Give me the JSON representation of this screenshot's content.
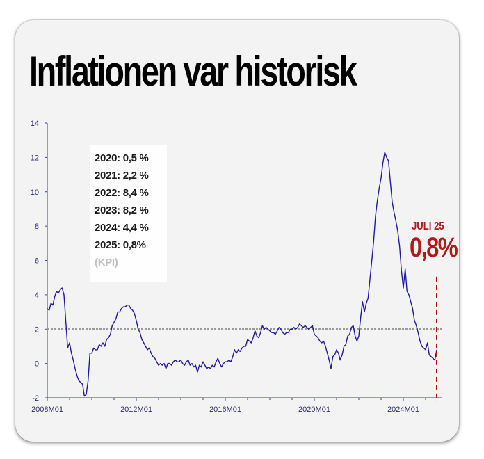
{
  "title": "Inflationen var historisk",
  "infobox": {
    "lines": [
      "2020: 0,5 %",
      "2021: 2,2 %",
      "2022: 8,4 %",
      "2023: 8,2 %",
      "2024: 4,4 %",
      "2025: 0,8%"
    ],
    "source": "(KPI)"
  },
  "callout": {
    "month": "JULI 25",
    "value": "0,8%"
  },
  "colors": {
    "line": "#1f1aa0",
    "callout": "#b01a1a",
    "reference": "#9a9a9a"
  },
  "chart_data": {
    "type": "line",
    "title": "Inflationen var historisk",
    "xlabel": "",
    "ylabel": "",
    "ylim": [
      -2,
      14
    ],
    "y_ticks": [
      -2,
      0,
      2,
      4,
      6,
      8,
      10,
      12,
      14
    ],
    "x_tick_labels": [
      "2008M01",
      "2012M01",
      "2016M01",
      "2020M01",
      "2024M01"
    ],
    "x_start": "2008M01",
    "reference_line": 2,
    "grid": false,
    "series": [
      {
        "name": "",
        "frequency": "monthly",
        "values": [
          3.2,
          3.1,
          3.5,
          3.4,
          3.9,
          4.2,
          4.1,
          4.3,
          4.4,
          4.0,
          2.4,
          0.9,
          1.2,
          0.6,
          0.2,
          -0.3,
          -0.7,
          -1.0,
          -1.1,
          -1.2,
          -1.9,
          -1.8,
          -1.0,
          0.6,
          0.6,
          0.9,
          0.8,
          0.8,
          1.1,
          1.0,
          1.2,
          1.0,
          1.4,
          1.5,
          1.7,
          2.2,
          2.4,
          2.6,
          3.0,
          3.0,
          3.2,
          3.3,
          3.3,
          3.4,
          3.4,
          3.2,
          3.1,
          2.9,
          2.5,
          2.0,
          1.8,
          1.4,
          1.2,
          1.0,
          0.8,
          0.9,
          0.6,
          0.4,
          0.3,
          0.1,
          -0.1,
          0.0,
          -0.1,
          0.0,
          -0.3,
          0.0,
          0.0,
          -0.1,
          0.1,
          0.2,
          0.1,
          0.1,
          0.2,
          0.0,
          -0.1,
          0.1,
          0.2,
          -0.1,
          0.0,
          -0.2,
          -0.1,
          -0.5,
          -0.1,
          -0.2,
          0.1,
          -0.1,
          -0.3,
          -0.2,
          -0.3,
          -0.1,
          -0.2,
          0.1,
          0.3,
          0.0,
          -0.2,
          0.0,
          0.1,
          0.1,
          0.2,
          0.1,
          0.4,
          0.8,
          0.6,
          0.8,
          0.7,
          0.9,
          1.0,
          1.0,
          1.4,
          1.3,
          1.2,
          1.5,
          1.9,
          1.6,
          1.5,
          1.8,
          2.2,
          2.0,
          2.1,
          2.0,
          1.9,
          1.8,
          1.8,
          1.7,
          1.9,
          2.1,
          2.0,
          1.8,
          1.7,
          1.8,
          1.8,
          2.0,
          2.0,
          2.1,
          2.0,
          2.1,
          2.3,
          2.2,
          2.1,
          2.2,
          2.1,
          2.0,
          2.1,
          2.2,
          1.7,
          1.6,
          1.5,
          1.3,
          1.2,
          1.3,
          1.0,
          0.6,
          0.2,
          -0.3,
          0.4,
          0.5,
          0.8,
          0.6,
          0.2,
          0.5,
          1.0,
          1.1,
          1.6,
          1.7,
          2.1,
          2.2,
          1.6,
          1.3,
          1.6,
          2.7,
          3.6,
          3.0,
          3.5,
          3.8,
          4.9,
          6.0,
          7.1,
          8.6,
          9.5,
          10.2,
          10.8,
          11.7,
          12.3,
          12.0,
          11.8,
          10.6,
          9.4,
          8.8,
          8.3,
          7.7,
          6.8,
          5.4,
          4.4,
          5.5,
          4.2,
          4.0,
          3.6,
          3.2,
          2.5,
          2.2,
          1.8,
          1.3,
          1.0,
          0.9,
          0.8,
          1.2,
          0.5,
          0.4,
          0.3,
          0.2,
          0.8
        ]
      }
    ]
  }
}
